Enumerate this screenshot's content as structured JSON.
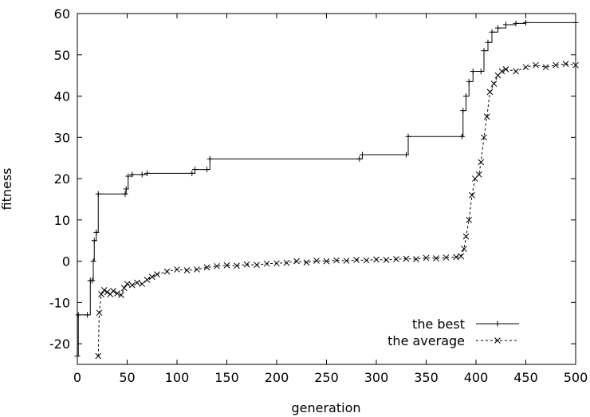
{
  "chart_data": {
    "type": "line",
    "title": "",
    "xlabel": "generation",
    "ylabel": "fitness",
    "xlim": [
      0,
      500
    ],
    "ylim": [
      -25,
      60
    ],
    "xticks": [
      0,
      50,
      100,
      150,
      200,
      250,
      300,
      350,
      400,
      450,
      500
    ],
    "yticks": [
      -20,
      -10,
      0,
      10,
      20,
      30,
      40,
      50,
      60
    ],
    "grid": false,
    "legend_position": "bottom-right",
    "series": [
      {
        "name": "the best",
        "marker": "+",
        "line_style": "solid",
        "color": "#000000",
        "points": [
          [
            0,
            -23
          ],
          [
            1,
            -13
          ],
          [
            10,
            -13
          ],
          [
            13,
            -4.7
          ],
          [
            15,
            -4.7
          ],
          [
            16,
            0
          ],
          [
            17,
            5
          ],
          [
            19,
            7
          ],
          [
            21,
            16.3
          ],
          [
            48,
            16.3
          ],
          [
            49,
            17.5
          ],
          [
            51,
            20.6
          ],
          [
            55,
            21
          ],
          [
            65,
            21
          ],
          [
            70,
            21.3
          ],
          [
            115,
            21.3
          ],
          [
            118,
            22.2
          ],
          [
            130,
            22.2
          ],
          [
            133,
            24.8
          ],
          [
            283,
            24.8
          ],
          [
            286,
            25.8
          ],
          [
            330,
            25.8
          ],
          [
            332,
            30.2
          ],
          [
            386,
            30.2
          ],
          [
            387,
            36.5
          ],
          [
            390,
            40
          ],
          [
            393,
            43.5
          ],
          [
            397,
            46
          ],
          [
            405,
            46
          ],
          [
            408,
            51
          ],
          [
            412,
            53
          ],
          [
            416,
            55.5
          ],
          [
            422,
            56.5
          ],
          [
            430,
            57.3
          ],
          [
            440,
            57.6
          ],
          [
            450,
            57.8
          ],
          [
            500,
            57.8
          ]
        ]
      },
      {
        "name": "the average",
        "marker": "x",
        "line_style": "dashed",
        "color": "#000000",
        "points": [
          [
            21,
            -23
          ],
          [
            22,
            -12.5
          ],
          [
            24,
            -8
          ],
          [
            27,
            -7
          ],
          [
            30,
            -7.5
          ],
          [
            33,
            -8
          ],
          [
            36,
            -7.2
          ],
          [
            40,
            -7.8
          ],
          [
            44,
            -8.2
          ],
          [
            47,
            -6.5
          ],
          [
            50,
            -5.5
          ],
          [
            55,
            -5.8
          ],
          [
            60,
            -5.2
          ],
          [
            65,
            -5.5
          ],
          [
            70,
            -4.5
          ],
          [
            75,
            -3.8
          ],
          [
            80,
            -3.2
          ],
          [
            90,
            -2.5
          ],
          [
            100,
            -2
          ],
          [
            110,
            -2.2
          ],
          [
            120,
            -2
          ],
          [
            130,
            -1.5
          ],
          [
            140,
            -1.2
          ],
          [
            150,
            -1
          ],
          [
            160,
            -1.1
          ],
          [
            170,
            -0.8
          ],
          [
            180,
            -0.9
          ],
          [
            190,
            -0.6
          ],
          [
            200,
            -0.5
          ],
          [
            210,
            -0.4
          ],
          [
            220,
            0
          ],
          [
            230,
            -0.3
          ],
          [
            240,
            0.1
          ],
          [
            250,
            0
          ],
          [
            260,
            0.2
          ],
          [
            270,
            0.1
          ],
          [
            280,
            0.3
          ],
          [
            290,
            0.2
          ],
          [
            300,
            0.4
          ],
          [
            310,
            0.3
          ],
          [
            320,
            0.5
          ],
          [
            330,
            0.6
          ],
          [
            340,
            0.5
          ],
          [
            350,
            0.8
          ],
          [
            360,
            0.7
          ],
          [
            370,
            0.9
          ],
          [
            380,
            1
          ],
          [
            385,
            1.2
          ],
          [
            388,
            3
          ],
          [
            390,
            6
          ],
          [
            393,
            10
          ],
          [
            396,
            16
          ],
          [
            399,
            20
          ],
          [
            403,
            21
          ],
          [
            405,
            24
          ],
          [
            408,
            30
          ],
          [
            411,
            35
          ],
          [
            414,
            41
          ],
          [
            418,
            43
          ],
          [
            422,
            45
          ],
          [
            426,
            46
          ],
          [
            430,
            46.5
          ],
          [
            440,
            46
          ],
          [
            450,
            47
          ],
          [
            460,
            47.5
          ],
          [
            470,
            47
          ],
          [
            480,
            47.5
          ],
          [
            490,
            47.8
          ],
          [
            500,
            47.5
          ]
        ]
      }
    ]
  }
}
